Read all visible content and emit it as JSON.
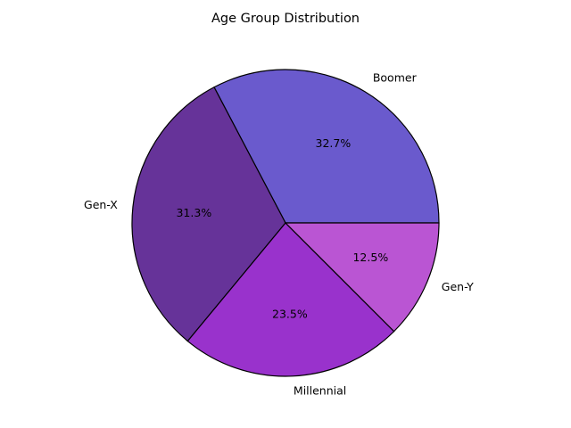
{
  "chart_data": {
    "type": "pie",
    "title": "Age Group Distribution",
    "start_angle_deg": 0,
    "direction": "counterclockwise",
    "slices": [
      {
        "label": "Boomer",
        "value": 32.7,
        "pct_label": "32.7%",
        "color": "#6A5ACD"
      },
      {
        "label": "Gen-X",
        "value": 31.3,
        "pct_label": "31.3%",
        "color": "#663399"
      },
      {
        "label": "Millennial",
        "value": 23.5,
        "pct_label": "23.5%",
        "color": "#9932CC"
      },
      {
        "label": "Gen-Y",
        "value": 12.5,
        "pct_label": "12.5%",
        "color": "#BA55D3"
      }
    ],
    "edge_color": "#000000"
  }
}
